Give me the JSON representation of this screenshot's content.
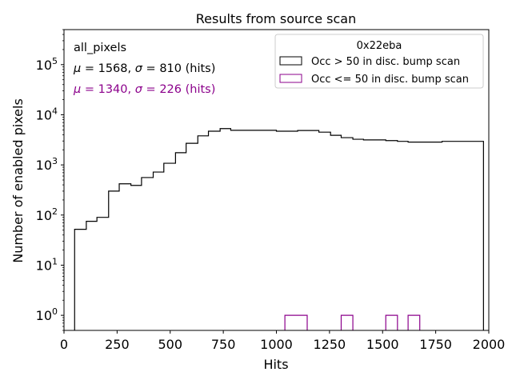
{
  "chart_data": {
    "type": "histogram",
    "title": "Results from source scan",
    "xlabel": "Hits",
    "ylabel": "Number of enabled pixels",
    "xlim": [
      0,
      2000
    ],
    "ylim_log": [
      0.5,
      500000
    ],
    "yscale": "log",
    "x_ticks": [
      0,
      250,
      500,
      750,
      1000,
      1250,
      1500,
      1750,
      2000
    ],
    "x_tick_labels": [
      "0",
      "250",
      "500",
      "750",
      "1000",
      "1250",
      "1500",
      "1750",
      "2000"
    ],
    "y_ticks": [
      1,
      10,
      100,
      1000,
      10000,
      100000
    ],
    "y_tick_labels": [
      {
        "base": "10",
        "exp": "0"
      },
      {
        "base": "10",
        "exp": "1"
      },
      {
        "base": "10",
        "exp": "2"
      },
      {
        "base": "10",
        "exp": "3"
      },
      {
        "base": "10",
        "exp": "4"
      },
      {
        "base": "10",
        "exp": "5"
      }
    ],
    "annotations": {
      "header": "all_pixels",
      "stats": [
        {
          "mu": "1568",
          "sigma": "810",
          "unit": "(hits)",
          "color": "#000000"
        },
        {
          "mu": "1340",
          "sigma": "226",
          "unit": "(hits)",
          "color": "#8b008b"
        }
      ]
    },
    "legend": {
      "title": "0x22eba",
      "placement": "top-right",
      "entries": [
        "Occ > 50 in disc. bump scan",
        "Occ <= 50 in disc. bump scan"
      ]
    },
    "series": [
      {
        "name": "Occ > 50 in disc. bump scan",
        "color": "#000000",
        "bins": [
          {
            "x0": 50,
            "x1": 105,
            "count": 52
          },
          {
            "x0": 105,
            "x1": 155,
            "count": 75
          },
          {
            "x0": 155,
            "x1": 210,
            "count": 90
          },
          {
            "x0": 210,
            "x1": 260,
            "count": 300
          },
          {
            "x0": 260,
            "x1": 315,
            "count": 420
          },
          {
            "x0": 315,
            "x1": 365,
            "count": 390
          },
          {
            "x0": 365,
            "x1": 420,
            "count": 560
          },
          {
            "x0": 420,
            "x1": 470,
            "count": 720
          },
          {
            "x0": 470,
            "x1": 525,
            "count": 1080
          },
          {
            "x0": 525,
            "x1": 575,
            "count": 1750
          },
          {
            "x0": 575,
            "x1": 630,
            "count": 2700
          },
          {
            "x0": 630,
            "x1": 680,
            "count": 3800
          },
          {
            "x0": 680,
            "x1": 735,
            "count": 4700
          },
          {
            "x0": 735,
            "x1": 785,
            "count": 5300
          },
          {
            "x0": 785,
            "x1": 1000,
            "count": 4900
          },
          {
            "x0": 1000,
            "x1": 1100,
            "count": 4700
          },
          {
            "x0": 1100,
            "x1": 1200,
            "count": 4850
          },
          {
            "x0": 1200,
            "x1": 1255,
            "count": 4500
          },
          {
            "x0": 1255,
            "x1": 1305,
            "count": 3900
          },
          {
            "x0": 1305,
            "x1": 1360,
            "count": 3500
          },
          {
            "x0": 1360,
            "x1": 1410,
            "count": 3250
          },
          {
            "x0": 1410,
            "x1": 1515,
            "count": 3150
          },
          {
            "x0": 1515,
            "x1": 1570,
            "count": 3050
          },
          {
            "x0": 1570,
            "x1": 1620,
            "count": 2950
          },
          {
            "x0": 1620,
            "x1": 1780,
            "count": 2850
          },
          {
            "x0": 1780,
            "x1": 1975,
            "count": 2950
          }
        ]
      },
      {
        "name": "Occ <= 50 in disc. bump scan",
        "color": "#8b008b",
        "bins": [
          {
            "x0": 1040,
            "x1": 1145,
            "count": 1
          },
          {
            "x0": 1305,
            "x1": 1360,
            "count": 1
          },
          {
            "x0": 1515,
            "x1": 1570,
            "count": 1
          },
          {
            "x0": 1620,
            "x1": 1675,
            "count": 1
          }
        ]
      }
    ]
  }
}
